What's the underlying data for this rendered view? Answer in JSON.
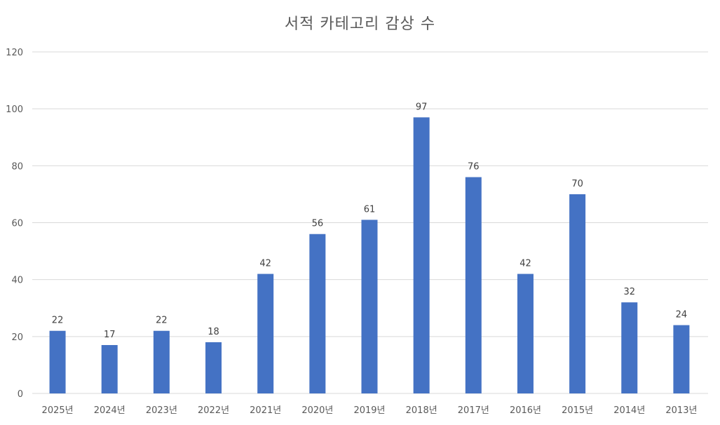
{
  "chart_data": {
    "type": "bar",
    "title": "서적 카테고리 감상 수",
    "xlabel": "",
    "ylabel": "",
    "ylim": [
      0,
      120
    ],
    "yticks": [
      0,
      20,
      40,
      60,
      80,
      100,
      120
    ],
    "categories": [
      "2025년",
      "2024년",
      "2023년",
      "2022년",
      "2021년",
      "2020년",
      "2019년",
      "2018년",
      "2017년",
      "2016년",
      "2015년",
      "2014년",
      "2013년"
    ],
    "values": [
      22,
      17,
      22,
      18,
      42,
      56,
      61,
      97,
      76,
      42,
      70,
      32,
      24
    ],
    "bar_color": "#4472C4",
    "grid_color": "#D9D9D9",
    "grid": true,
    "data_labels": true,
    "legend": "none"
  }
}
